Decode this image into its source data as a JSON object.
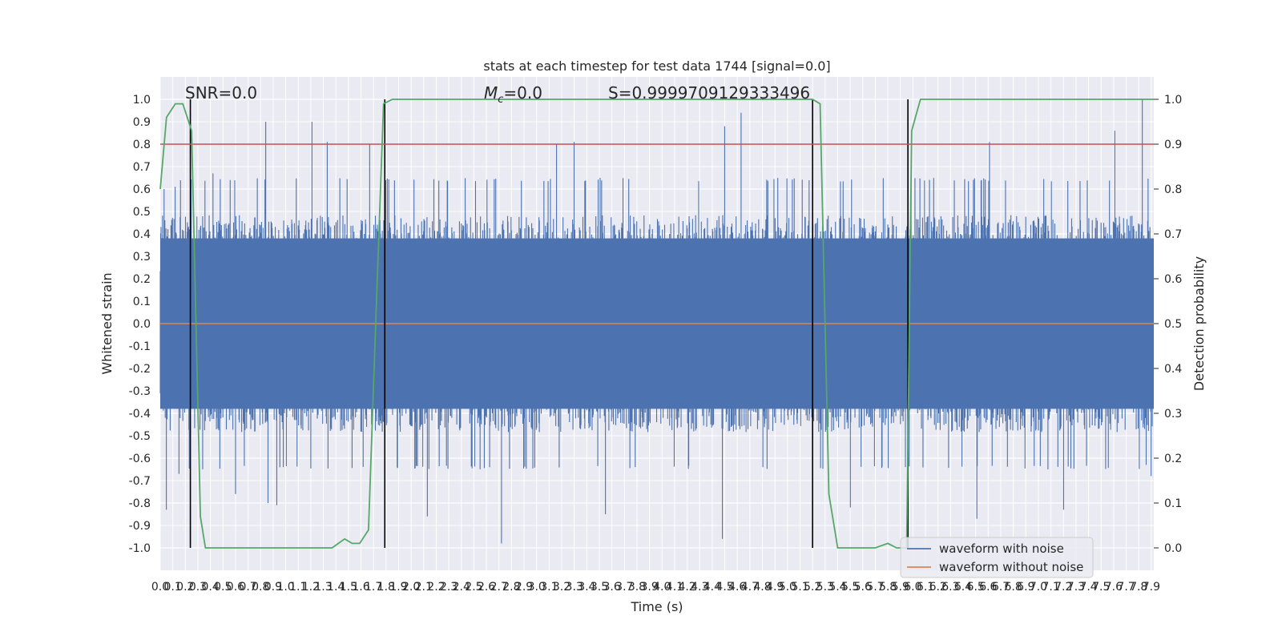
{
  "chart_data": {
    "type": "line",
    "title": "stats at each timestep for test data 1744 [signal=0.0]",
    "xlabel": "Time (s)",
    "ylabel": "Whitened strain",
    "y2label": "Detection probability",
    "xlim": [
      0.0,
      7.92
    ],
    "ylim": [
      -1.1,
      1.1
    ],
    "y2lim": [
      -0.05,
      1.05
    ],
    "x_ticks": [
      0.0,
      0.1,
      0.2,
      0.3,
      0.4,
      0.5,
      0.6,
      0.7,
      0.8,
      0.9,
      1.0,
      1.1,
      1.2,
      1.3,
      1.4,
      1.5,
      1.6,
      1.7,
      1.8,
      1.9,
      2.0,
      2.1,
      2.2,
      2.3,
      2.4,
      2.5,
      2.6,
      2.7,
      2.8,
      2.9,
      3.0,
      3.1,
      3.2,
      3.3,
      3.4,
      3.5,
      3.6,
      3.7,
      3.8,
      3.9,
      4.0,
      4.1,
      4.2,
      4.3,
      4.4,
      4.5,
      4.6,
      4.7,
      4.8,
      4.9,
      5.0,
      5.1,
      5.2,
      5.3,
      5.4,
      5.5,
      5.6,
      5.7,
      5.8,
      5.9,
      6.0,
      6.1,
      6.2,
      6.3,
      6.4,
      6.5,
      6.6,
      6.7,
      6.8,
      6.9,
      7.0,
      7.1,
      7.2,
      7.3,
      7.4,
      7.5,
      7.6,
      7.7,
      7.8,
      7.9
    ],
    "y_ticks": [
      -1.0,
      -0.9,
      -0.8,
      -0.7,
      -0.6,
      -0.5,
      -0.4,
      -0.3,
      -0.2,
      -0.1,
      0.0,
      0.1,
      0.2,
      0.3,
      0.4,
      0.5,
      0.6,
      0.7,
      0.8,
      0.9,
      1.0
    ],
    "y2_ticks": [
      0.0,
      0.1,
      0.2,
      0.3,
      0.4,
      0.5,
      0.6,
      0.7,
      0.8,
      0.9,
      1.0
    ],
    "grid": true,
    "legend": {
      "location": "lower-right",
      "entries": [
        "waveform with noise",
        "waveform without noise"
      ]
    },
    "series": [
      {
        "name": "waveform with noise",
        "axis": "left",
        "color": "#4c72b0",
        "style": "dense-noise",
        "envelope_upper_approx": 0.5,
        "envelope_lower_approx": -0.5,
        "peaks": [
          {
            "x": 0.03,
            "y": 0.6
          },
          {
            "x": 0.05,
            "y": -0.83
          },
          {
            "x": 0.12,
            "y": 0.61
          },
          {
            "x": 0.15,
            "y": -0.67
          },
          {
            "x": 0.42,
            "y": 0.67
          },
          {
            "x": 0.6,
            "y": -0.76
          },
          {
            "x": 0.84,
            "y": 0.9
          },
          {
            "x": 0.86,
            "y": -0.8
          },
          {
            "x": 0.93,
            "y": -0.81
          },
          {
            "x": 1.21,
            "y": 0.9
          },
          {
            "x": 1.33,
            "y": 0.81
          },
          {
            "x": 1.67,
            "y": 0.8
          },
          {
            "x": 2.13,
            "y": -0.86
          },
          {
            "x": 2.72,
            "y": -0.98
          },
          {
            "x": 3.16,
            "y": 0.8
          },
          {
            "x": 3.3,
            "y": 0.81
          },
          {
            "x": 3.55,
            "y": -0.85
          },
          {
            "x": 4.5,
            "y": 0.88
          },
          {
            "x": 4.48,
            "y": -0.96
          },
          {
            "x": 4.63,
            "y": 0.94
          },
          {
            "x": 5.5,
            "y": -0.82
          },
          {
            "x": 6.51,
            "y": -0.87
          },
          {
            "x": 6.61,
            "y": 0.81
          },
          {
            "x": 7.2,
            "y": -0.83
          },
          {
            "x": 7.61,
            "y": 0.86
          },
          {
            "x": 7.83,
            "y": 1.0
          },
          {
            "x": 7.86,
            "y": -0.63
          },
          {
            "x": 7.9,
            "y": -0.68
          }
        ]
      },
      {
        "name": "waveform without noise",
        "axis": "left",
        "color": "#dd8452",
        "x": [
          0.0,
          7.92
        ],
        "y": [
          0.0,
          0.0
        ]
      },
      {
        "name": "",
        "axis": "right",
        "color": "#55a868",
        "x": [
          0.0,
          0.05,
          0.12,
          0.18,
          0.25,
          0.32,
          0.36,
          1.0,
          1.2,
          1.37,
          1.42,
          1.47,
          1.53,
          1.59,
          1.66,
          1.72,
          1.78,
          1.85,
          1.9,
          5.2,
          5.26,
          5.33,
          5.4,
          5.6,
          5.7,
          5.8,
          5.87,
          5.92,
          5.95,
          5.99,
          6.06,
          7.92
        ],
        "y": [
          0.8,
          0.96,
          0.99,
          0.99,
          0.93,
          0.07,
          0.0,
          0.0,
          0.0,
          0.0,
          0.01,
          0.02,
          0.01,
          0.01,
          0.04,
          0.52,
          0.99,
          1.0,
          1.0,
          1.0,
          0.99,
          0.12,
          0.0,
          0.0,
          0.0,
          0.01,
          0.0,
          0.0,
          0.0,
          0.93,
          1.0,
          1.0
        ]
      }
    ],
    "threshold_line": {
      "axis": "right",
      "y": 0.9,
      "color": "#c44e52"
    },
    "vertical_markers": [
      0.24,
      1.79,
      5.2,
      5.96
    ],
    "annotations": {
      "snr": "SNR=0.0",
      "mc_symbol": "M",
      "mc_subscript": "c",
      "mc_value": "=0.0",
      "s": "S=0.9999709129333496"
    }
  }
}
